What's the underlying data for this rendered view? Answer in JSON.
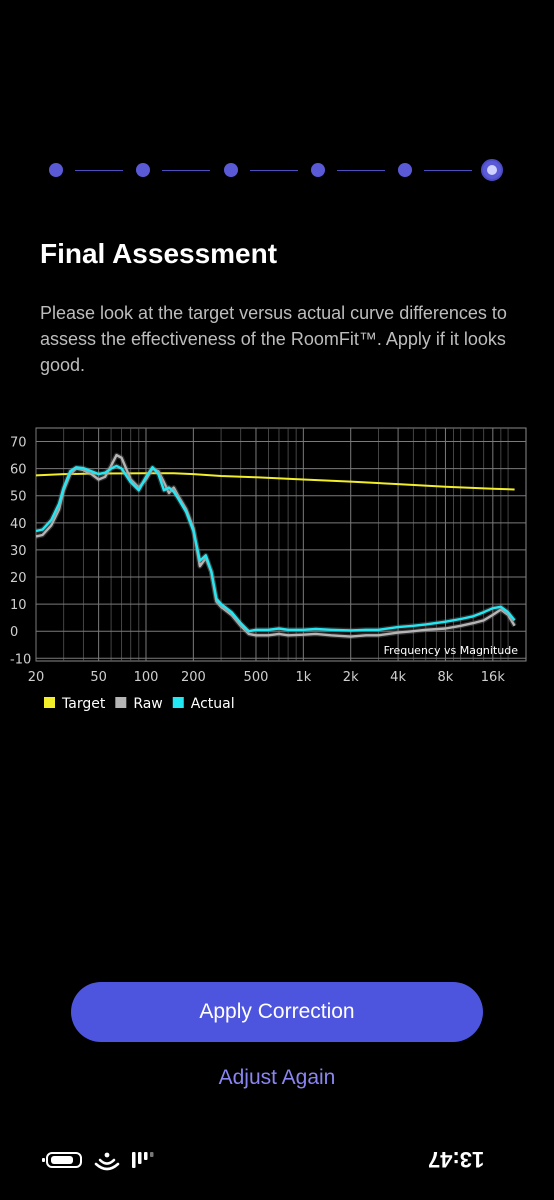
{
  "stepper": {
    "total_steps": 6,
    "current_step": 6
  },
  "header": {
    "title": "Final Assessment",
    "description": "Please look at the target versus actual curve differences to assess the effectiveness of the RoomFit™. Apply if it looks good."
  },
  "chart_data": {
    "type": "line",
    "annotation": "Frequency vs Magnitude",
    "x_scale": "log",
    "x_ticks": [
      20,
      50,
      100,
      200,
      500,
      1000,
      2000,
      4000,
      8000,
      16000
    ],
    "x_tick_labels": [
      "20",
      "50",
      "100",
      "200",
      "500",
      "1k",
      "2k",
      "4k",
      "8k",
      "16k"
    ],
    "xlim": [
      20,
      26000
    ],
    "y_ticks": [
      -10,
      0,
      10,
      20,
      30,
      40,
      50,
      60,
      70
    ],
    "y_tick_labels": [
      "-10",
      "0",
      "10",
      "20",
      "30",
      "40",
      "50",
      "60",
      "70"
    ],
    "ylim": [
      -11,
      75
    ],
    "grid": true,
    "legend_position": "bottom-left",
    "series": [
      {
        "name": "Target",
        "color": "#f2ee2a",
        "x": [
          20,
          30,
          50,
          100,
          150,
          200,
          300,
          500,
          1000,
          2000,
          4000,
          8000,
          16000,
          22000
        ],
        "y": [
          57.5,
          58,
          58.2,
          58.3,
          58.3,
          58,
          57.3,
          56.8,
          56,
          55.2,
          54.3,
          53.3,
          52.6,
          52.3
        ]
      },
      {
        "name": "Raw",
        "color": "#b5b5b5",
        "x": [
          20,
          22,
          25,
          28,
          30,
          33,
          36,
          40,
          45,
          50,
          55,
          60,
          65,
          70,
          80,
          90,
          100,
          110,
          120,
          130,
          140,
          150,
          160,
          180,
          200,
          220,
          240,
          260,
          280,
          300,
          350,
          400,
          450,
          500,
          600,
          700,
          800,
          1000,
          1200,
          1500,
          2000,
          2500,
          3000,
          4000,
          5000,
          6000,
          8000,
          10000,
          12000,
          14000,
          16000,
          18000,
          20000,
          22000
        ],
        "y": [
          35,
          35.5,
          39,
          45,
          52,
          58,
          60,
          59.5,
          58,
          56,
          57,
          61,
          65,
          64,
          56,
          53,
          56,
          60,
          59,
          55,
          51,
          53,
          50,
          45,
          38,
          24,
          27,
          22,
          11,
          9,
          6,
          2,
          -1,
          -1.5,
          -1.5,
          -1,
          -1.5,
          -1.3,
          -1,
          -1.5,
          -2,
          -1.5,
          -1.5,
          -0.5,
          0,
          0.5,
          1,
          2,
          3,
          4,
          6,
          8,
          6,
          2
        ]
      },
      {
        "name": "Actual",
        "color": "#22e8f4",
        "x": [
          20,
          22,
          25,
          28,
          30,
          33,
          36,
          40,
          45,
          50,
          55,
          60,
          65,
          70,
          80,
          90,
          100,
          110,
          120,
          130,
          140,
          150,
          160,
          180,
          200,
          220,
          240,
          260,
          280,
          300,
          350,
          400,
          450,
          500,
          600,
          700,
          800,
          1000,
          1200,
          1500,
          2000,
          2500,
          3000,
          4000,
          5000,
          6000,
          8000,
          10000,
          12000,
          14000,
          16000,
          18000,
          20000,
          22000
        ],
        "y": [
          37,
          37.5,
          41,
          47,
          53,
          59,
          60.5,
          60.2,
          59,
          58,
          58.5,
          60,
          61,
          60,
          55,
          52,
          57,
          60.5,
          58,
          52,
          53,
          51.5,
          49,
          44,
          37,
          26,
          28,
          22,
          12,
          10,
          7,
          3,
          0,
          0.5,
          0.5,
          1,
          0.5,
          0.5,
          0.8,
          0.5,
          0.3,
          0.5,
          0.5,
          1.5,
          2,
          2.5,
          3.5,
          4.5,
          5.5,
          7,
          8.5,
          9,
          7,
          4
        ]
      }
    ]
  },
  "buttons": {
    "apply_label": "Apply Correction",
    "adjust_label": "Adjust Again"
  },
  "status_bar": {
    "time": "13:47",
    "icons": [
      "battery-icon",
      "wifi-icon",
      "signal-icon"
    ]
  }
}
